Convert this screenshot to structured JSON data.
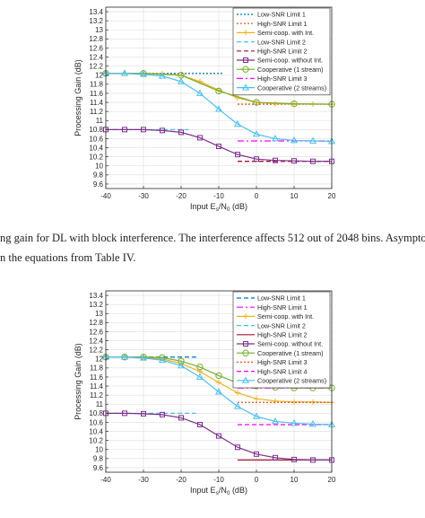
{
  "captions": {
    "line1": "ng gain for DL with block interference. The interference affects 512 out of 2048 bins. Asymptotic limits",
    "line2": "n the equations from Table IV."
  },
  "chart_data": [
    {
      "type": "line",
      "ylabel": "Processing Gain (dB)",
      "xlabel_parts": {
        "pre": "Input E",
        "sub1": "s",
        "mid": "/N",
        "sub2": "0",
        "post": " (dB)"
      },
      "xlim": [
        -40,
        20
      ],
      "ylim": [
        9.5,
        13.5
      ],
      "xticks": [
        -40,
        -30,
        -20,
        -10,
        0,
        10,
        20
      ],
      "yticks": [
        9.6,
        9.8,
        10,
        10.2,
        10.4,
        10.6,
        10.8,
        11,
        11.2,
        11.4,
        11.6,
        11.8,
        12,
        12.2,
        12.4,
        12.6,
        12.8,
        13,
        13.2,
        13.4
      ],
      "grid": true,
      "legend_position": "top-right",
      "series": [
        {
          "name": "Low-SNR Limit 1",
          "kind": "limit",
          "color": "#0072BD",
          "dash": "2,2",
          "x": [
            -40,
            -9
          ],
          "y": [
            12.04,
            12.04
          ]
        },
        {
          "name": "High-SNR Limit 1",
          "kind": "limit",
          "color": "#D95319",
          "dash": "2,2",
          "x": [
            -5,
            20
          ],
          "y": [
            11.36,
            11.36
          ]
        },
        {
          "name": "Semi-coop. with Int.",
          "kind": "curve",
          "color": "#EDB120",
          "marker": "plus",
          "x": [
            -40,
            -35,
            -30,
            -25,
            -20,
            -15,
            -10,
            -5,
            0,
            5,
            10,
            15,
            20
          ],
          "y": [
            12.04,
            12.04,
            12.04,
            12.03,
            12.0,
            11.86,
            11.67,
            11.5,
            11.4,
            11.37,
            11.36,
            11.36,
            11.36
          ]
        },
        {
          "name": "Low-SNR Limit 2",
          "kind": "limit",
          "color": "#4DBEEE",
          "dash": "5,3",
          "x": [
            -40,
            -18
          ],
          "y": [
            10.8,
            10.8
          ]
        },
        {
          "name": "High-SNR Limit 2",
          "kind": "limit",
          "color": "#A2142F",
          "dash": "5,3",
          "x": [
            -5,
            20
          ],
          "y": [
            10.1,
            10.1
          ]
        },
        {
          "name": "Semi-coop. without Int.",
          "kind": "curve",
          "color": "#7E2F8E",
          "marker": "square",
          "x": [
            -40,
            -35,
            -30,
            -25,
            -20,
            -15,
            -10,
            -5,
            0,
            5,
            10,
            15,
            20
          ],
          "y": [
            10.8,
            10.8,
            10.8,
            10.78,
            10.74,
            10.62,
            10.43,
            10.25,
            10.15,
            10.12,
            10.11,
            10.1,
            10.1
          ]
        },
        {
          "name": "Cooperative (1 stream)",
          "kind": "curve",
          "color": "#77AC30",
          "marker": "circle",
          "x": [
            -40,
            -30,
            -20,
            -10,
            0,
            10,
            20
          ],
          "y": [
            12.04,
            12.04,
            12.0,
            11.65,
            11.4,
            11.37,
            11.36
          ]
        },
        {
          "name": "High-SNR Limit 3",
          "kind": "limit",
          "color": "#FF00FF",
          "dash": "7,3,2,3",
          "x": [
            -5,
            20
          ],
          "y": [
            10.55,
            10.55
          ]
        },
        {
          "name": "Cooperative (2 streams)",
          "kind": "curve",
          "color": "#4DBEEE",
          "marker": "triangle",
          "x": [
            -40,
            -35,
            -30,
            -25,
            -20,
            -15,
            -10,
            -5,
            0,
            5,
            10,
            15,
            20
          ],
          "y": [
            12.04,
            12.04,
            12.02,
            11.98,
            11.86,
            11.6,
            11.25,
            10.92,
            10.7,
            10.6,
            10.56,
            10.55,
            10.54
          ]
        }
      ]
    },
    {
      "type": "line",
      "ylabel": "Processing Gain (dB)",
      "xlabel_parts": {
        "pre": "Input E",
        "sub1": "s",
        "mid": "/N",
        "sub2": "0",
        "post": " (dB)"
      },
      "xlim": [
        -40,
        20
      ],
      "ylim": [
        9.5,
        13.5
      ],
      "xticks": [
        -40,
        -30,
        -20,
        -10,
        0,
        10,
        20
      ],
      "yticks": [
        9.6,
        9.8,
        10,
        10.2,
        10.4,
        10.6,
        10.8,
        11,
        11.2,
        11.4,
        11.6,
        11.8,
        12,
        12.2,
        12.4,
        12.6,
        12.8,
        13,
        13.2,
        13.4
      ],
      "grid": true,
      "legend_position": "top-right",
      "series": [
        {
          "name": "Low-SNR Limit 1",
          "kind": "limit",
          "color": "#0072BD",
          "dash": "5,3",
          "x": [
            -40,
            -16
          ],
          "y": [
            12.04,
            12.04
          ]
        },
        {
          "name": "High-SNR Limit 1",
          "kind": "limit",
          "color": "#FF00FF",
          "dash": "7,3,2,3",
          "x": [
            -5,
            20
          ],
          "y": [
            11.36,
            11.36
          ]
        },
        {
          "name": "Semi-coop. with Int.",
          "kind": "curve",
          "color": "#EDB120",
          "marker": "plus",
          "x": [
            -40,
            -35,
            -30,
            -25,
            -20,
            -15,
            -10,
            -5,
            0,
            5,
            10,
            15,
            20
          ],
          "y": [
            12.04,
            12.04,
            12.03,
            12.0,
            11.9,
            11.72,
            11.48,
            11.25,
            11.12,
            11.07,
            11.05,
            11.05,
            11.04
          ]
        },
        {
          "name": "Low-SNR Limit 2",
          "kind": "limit",
          "color": "#4DBEEE",
          "dash": "5,3",
          "x": [
            -40,
            -16
          ],
          "y": [
            10.8,
            10.8
          ]
        },
        {
          "name": "High-SNR Limit 2",
          "kind": "limit",
          "color": "#A2142F",
          "dash": "",
          "x": [
            -5,
            20
          ],
          "y": [
            9.77,
            9.77
          ]
        },
        {
          "name": "Semi-coop. without Int.",
          "kind": "curve",
          "color": "#7E2F8E",
          "marker": "square",
          "x": [
            -40,
            -35,
            -30,
            -25,
            -20,
            -15,
            -10,
            -5,
            0,
            5,
            10,
            15,
            20
          ],
          "y": [
            10.8,
            10.8,
            10.79,
            10.77,
            10.7,
            10.55,
            10.3,
            10.05,
            9.9,
            9.82,
            9.78,
            9.77,
            9.77
          ]
        },
        {
          "name": "Cooperative (1 stream)",
          "kind": "curve",
          "color": "#77AC30",
          "marker": "circle",
          "x": [
            -40,
            -35,
            -30,
            -25,
            -20,
            -15,
            -10,
            -5,
            0,
            5,
            10,
            15,
            20
          ],
          "y": [
            12.04,
            12.04,
            12.04,
            12.03,
            11.95,
            11.82,
            11.63,
            11.47,
            11.4,
            11.37,
            11.36,
            11.36,
            11.36
          ]
        },
        {
          "name": "High-SNR Limit 3",
          "kind": "limit",
          "color": "#D95319",
          "dash": "2,2",
          "x": [
            -5,
            20
          ],
          "y": [
            11.04,
            11.04
          ]
        },
        {
          "name": "High-SNR Limit 4",
          "kind": "limit",
          "color": "#FF00FF",
          "dash": "5,3",
          "x": [
            -5,
            20
          ],
          "y": [
            10.55,
            10.55
          ]
        },
        {
          "name": "Cooperative (2 streams)",
          "kind": "curve",
          "color": "#4DBEEE",
          "marker": "triangle",
          "x": [
            -40,
            -35,
            -30,
            -25,
            -20,
            -15,
            -10,
            -5,
            0,
            5,
            10,
            15,
            20
          ],
          "y": [
            12.04,
            12.04,
            12.02,
            11.97,
            11.85,
            11.6,
            11.27,
            10.95,
            10.73,
            10.62,
            10.58,
            10.56,
            10.55
          ]
        }
      ]
    }
  ]
}
